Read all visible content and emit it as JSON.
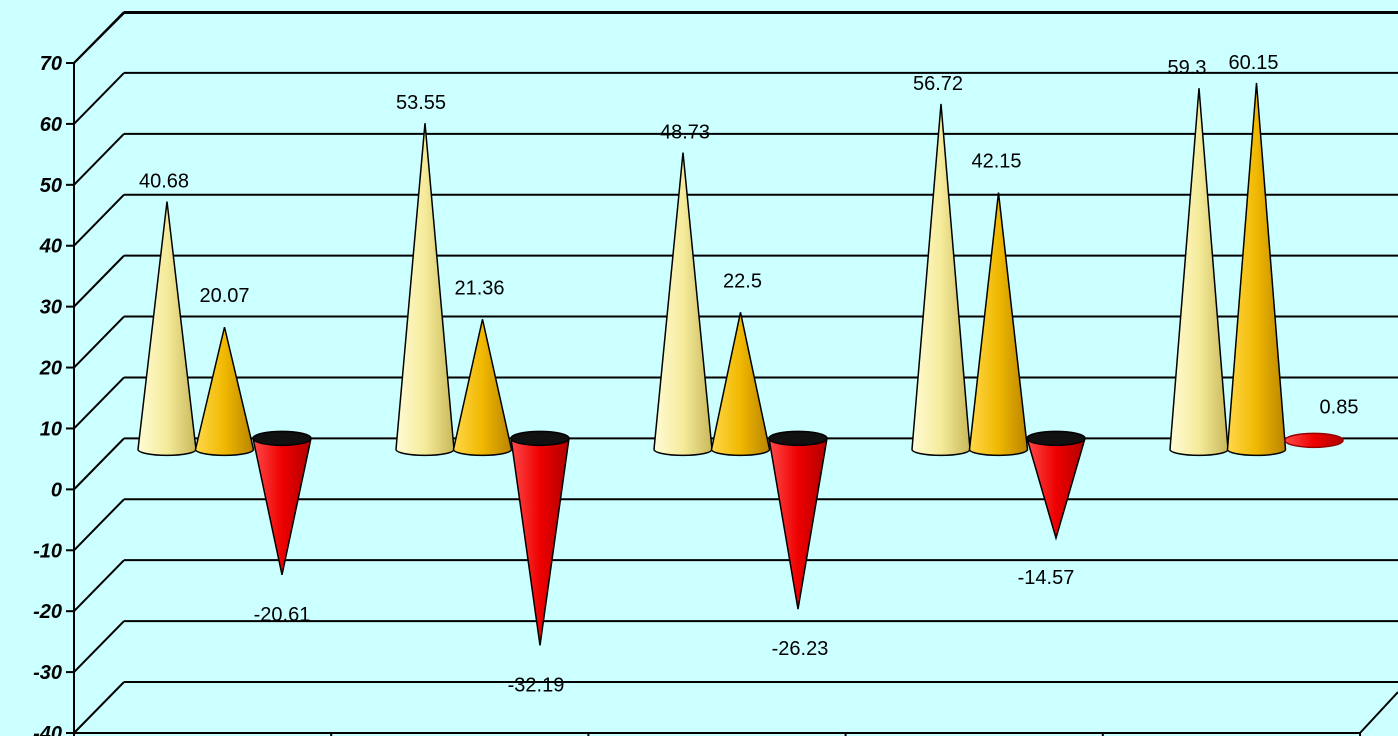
{
  "chart_data": {
    "type": "bar",
    "style": "3d-cone",
    "title": "",
    "xlabel": "",
    "ylabel": "",
    "ylim": [
      -40,
      70
    ],
    "yticks": [
      -40,
      -30,
      -20,
      -10,
      0,
      10,
      20,
      30,
      40,
      50,
      60,
      70
    ],
    "grid": true,
    "legend": "none",
    "categories": [
      "",
      "",
      "",
      "",
      ""
    ],
    "series": [
      {
        "values": [
          40.68,
          53.55,
          48.73,
          56.72,
          59.3
        ],
        "color": "#f5eb9a"
      },
      {
        "values": [
          20.07,
          21.36,
          22.5,
          42.15,
          60.15
        ],
        "color": "#f0b800"
      },
      {
        "values": [
          -20.61,
          -32.19,
          -26.23,
          -14.57,
          0.85
        ],
        "color": "#ee0000"
      }
    ],
    "background_color": "#ccffff"
  }
}
